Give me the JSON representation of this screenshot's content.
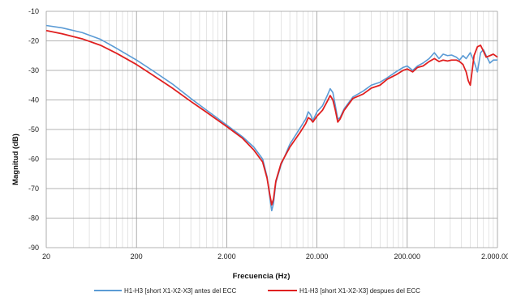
{
  "chart_data": {
    "type": "line",
    "title": "",
    "xlabel": "Frecuencia (Hz)",
    "ylabel": "Magnitud (dB)",
    "x_scale": "log",
    "xlim": [
      20,
      2000000
    ],
    "ylim": [
      -90,
      -10
    ],
    "x_ticks": [
      20,
      200,
      2000,
      20000,
      200000,
      2000000
    ],
    "x_tick_labels": [
      "20",
      "200",
      "2.000",
      "20.000",
      "200.000",
      "2.000.000"
    ],
    "y_ticks": [
      -90,
      -80,
      -70,
      -60,
      -50,
      -40,
      -30,
      -20,
      -10
    ],
    "y_tick_labels": [
      "-90",
      "-80",
      "-70",
      "-60",
      "-50",
      "-40",
      "-30",
      "-20",
      "-10"
    ],
    "grid": true,
    "legend_position": "bottom",
    "series": [
      {
        "name": "H1-H3 [short X1-X2-X3] antes del ECC",
        "color": "#5b9bd5",
        "points": [
          [
            20,
            -14.8
          ],
          [
            30,
            -15.6
          ],
          [
            50,
            -17.2
          ],
          [
            80,
            -19.5
          ],
          [
            120,
            -22.5
          ],
          [
            200,
            -26.5
          ],
          [
            300,
            -30.0
          ],
          [
            500,
            -34.6
          ],
          [
            800,
            -39.5
          ],
          [
            1200,
            -43.5
          ],
          [
            2000,
            -48.5
          ],
          [
            3000,
            -52.5
          ],
          [
            4000,
            -56.0
          ],
          [
            5000,
            -60.0
          ],
          [
            5600,
            -66.0
          ],
          [
            6000,
            -73.0
          ],
          [
            6300,
            -77.5
          ],
          [
            6600,
            -75.0
          ],
          [
            7000,
            -68.0
          ],
          [
            8000,
            -62.0
          ],
          [
            10000,
            -55.0
          ],
          [
            13000,
            -49.5
          ],
          [
            15000,
            -46.5
          ],
          [
            16000,
            -44.0
          ],
          [
            17000,
            -45.0
          ],
          [
            18000,
            -47.0
          ],
          [
            20000,
            -44.0
          ],
          [
            23000,
            -42.0
          ],
          [
            26000,
            -38.5
          ],
          [
            28000,
            -36.2
          ],
          [
            30000,
            -37.5
          ],
          [
            32000,
            -42.0
          ],
          [
            34000,
            -46.5
          ],
          [
            36000,
            -46.0
          ],
          [
            40000,
            -43.0
          ],
          [
            50000,
            -39.0
          ],
          [
            65000,
            -37.0
          ],
          [
            80000,
            -35.0
          ],
          [
            100000,
            -34.0
          ],
          [
            120000,
            -32.5
          ],
          [
            150000,
            -30.5
          ],
          [
            180000,
            -29.0
          ],
          [
            200000,
            -28.5
          ],
          [
            230000,
            -30.0
          ],
          [
            260000,
            -28.5
          ],
          [
            300000,
            -27.5
          ],
          [
            350000,
            -26.0
          ],
          [
            400000,
            -24.0
          ],
          [
            450000,
            -26.0
          ],
          [
            500000,
            -24.5
          ],
          [
            560000,
            -25.0
          ],
          [
            620000,
            -24.8
          ],
          [
            700000,
            -25.5
          ],
          [
            760000,
            -26.5
          ],
          [
            830000,
            -25.0
          ],
          [
            900000,
            -26.0
          ],
          [
            1000000,
            -24.0
          ],
          [
            1100000,
            -27.0
          ],
          [
            1200000,
            -30.5
          ],
          [
            1300000,
            -24.0
          ],
          [
            1400000,
            -23.0
          ],
          [
            1500000,
            -25.0
          ],
          [
            1650000,
            -27.5
          ],
          [
            1800000,
            -26.5
          ],
          [
            2000000,
            -26.5
          ]
        ]
      },
      {
        "name": "H1-H3 [short X1-X2-X3] despues del ECC",
        "color": "#e02020",
        "points": [
          [
            20,
            -16.5
          ],
          [
            30,
            -17.6
          ],
          [
            50,
            -19.3
          ],
          [
            80,
            -21.5
          ],
          [
            120,
            -24.2
          ],
          [
            200,
            -28.0
          ],
          [
            300,
            -31.5
          ],
          [
            500,
            -36.0
          ],
          [
            800,
            -40.5
          ],
          [
            1200,
            -44.2
          ],
          [
            2000,
            -49.0
          ],
          [
            3000,
            -53.0
          ],
          [
            4000,
            -57.0
          ],
          [
            5000,
            -61.0
          ],
          [
            5600,
            -66.5
          ],
          [
            6000,
            -72.0
          ],
          [
            6300,
            -75.5
          ],
          [
            6600,
            -73.5
          ],
          [
            7000,
            -67.5
          ],
          [
            8000,
            -61.5
          ],
          [
            10000,
            -56.0
          ],
          [
            13000,
            -51.0
          ],
          [
            15000,
            -48.0
          ],
          [
            16000,
            -46.0
          ],
          [
            17000,
            -46.5
          ],
          [
            18000,
            -47.5
          ],
          [
            20000,
            -45.5
          ],
          [
            23000,
            -43.5
          ],
          [
            26000,
            -40.5
          ],
          [
            28000,
            -38.5
          ],
          [
            30000,
            -40.0
          ],
          [
            32000,
            -43.5
          ],
          [
            34000,
            -47.5
          ],
          [
            36000,
            -46.5
          ],
          [
            40000,
            -43.5
          ],
          [
            50000,
            -39.5
          ],
          [
            65000,
            -38.0
          ],
          [
            80000,
            -36.0
          ],
          [
            100000,
            -35.0
          ],
          [
            120000,
            -33.0
          ],
          [
            150000,
            -31.5
          ],
          [
            180000,
            -30.0
          ],
          [
            200000,
            -29.5
          ],
          [
            230000,
            -30.5
          ],
          [
            260000,
            -29.0
          ],
          [
            300000,
            -28.5
          ],
          [
            350000,
            -27.0
          ],
          [
            400000,
            -26.0
          ],
          [
            450000,
            -27.0
          ],
          [
            500000,
            -26.5
          ],
          [
            560000,
            -26.8
          ],
          [
            620000,
            -26.5
          ],
          [
            700000,
            -26.5
          ],
          [
            760000,
            -27.0
          ],
          [
            830000,
            -28.0
          ],
          [
            900000,
            -30.5
          ],
          [
            950000,
            -33.5
          ],
          [
            1000000,
            -35.0
          ],
          [
            1050000,
            -30.0
          ],
          [
            1100000,
            -25.0
          ],
          [
            1200000,
            -22.0
          ],
          [
            1300000,
            -21.5
          ],
          [
            1400000,
            -23.5
          ],
          [
            1500000,
            -25.5
          ],
          [
            1650000,
            -25.0
          ],
          [
            1800000,
            -24.5
          ],
          [
            2000000,
            -25.5
          ]
        ]
      }
    ]
  }
}
